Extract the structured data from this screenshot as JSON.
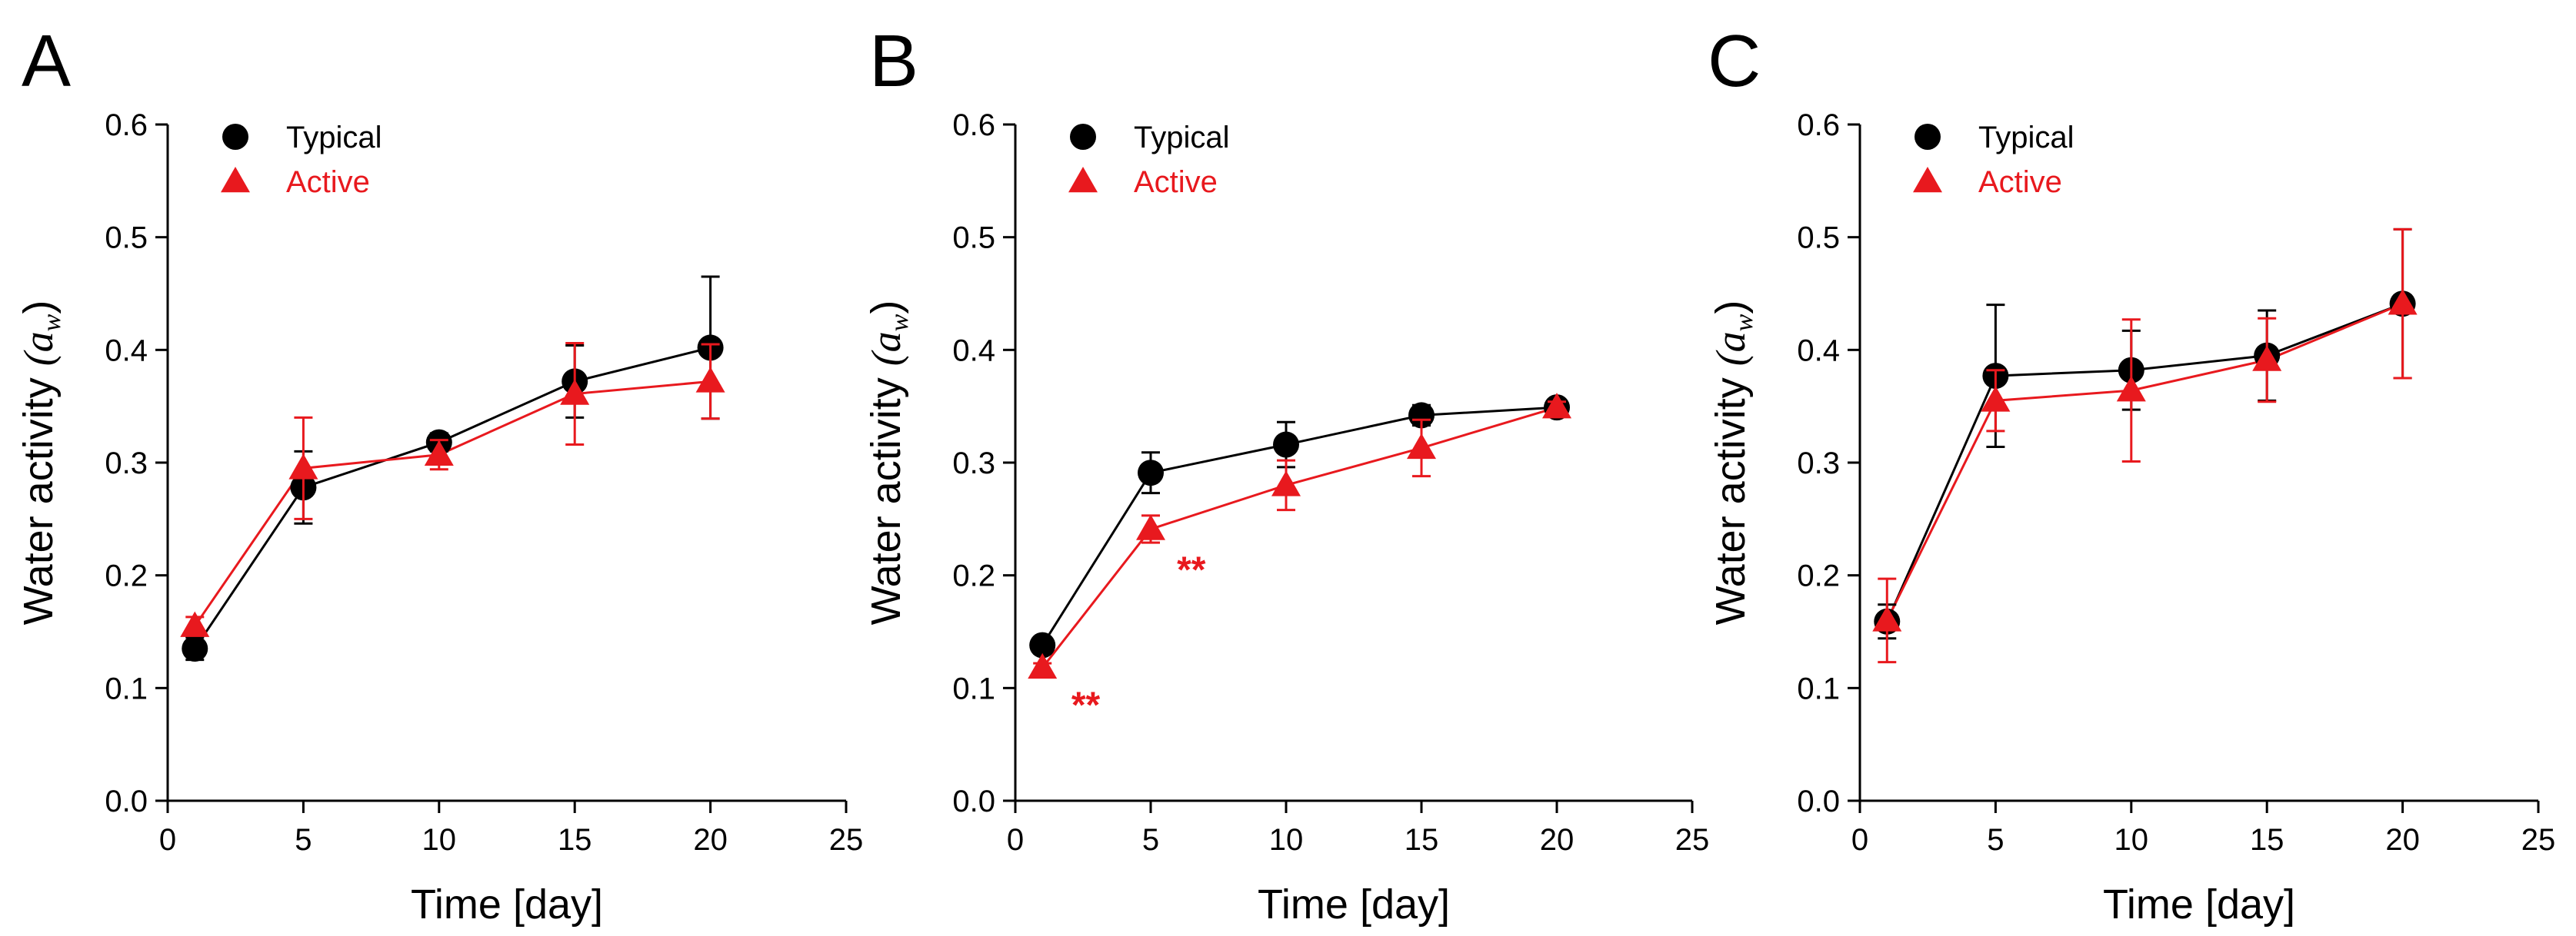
{
  "colors": {
    "typical": "#000000",
    "active": "#e8191e",
    "axis": "#000000"
  },
  "chart_data": [
    {
      "type": "line",
      "panel_label": "A",
      "xlabel": "Time [day]",
      "ylabel": "Water activity",
      "ylabel_symbol": "(a",
      "ylabel_subscript": "w",
      "ylabel_close": ")",
      "xlim": [
        0,
        25
      ],
      "ylim": [
        0.0,
        0.6
      ],
      "xticks": [
        "0",
        "5",
        "10",
        "15",
        "20",
        "25"
      ],
      "yticks": [
        "0.0",
        "0.1",
        "0.2",
        "0.3",
        "0.4",
        "0.5",
        "0.6"
      ],
      "grid": false,
      "legend": "top-left",
      "x": [
        1,
        5,
        10,
        15,
        20
      ],
      "series": [
        {
          "name": "Typical",
          "marker": "circle",
          "values": [
            0.135,
            0.278,
            0.318,
            0.372,
            0.402
          ],
          "errors": [
            0.01,
            0.032,
            0.008,
            0.032,
            0.063
          ]
        },
        {
          "name": "Active",
          "marker": "triangle",
          "values": [
            0.155,
            0.295,
            0.307,
            0.361,
            0.372
          ],
          "errors": [
            0.008,
            0.045,
            0.013,
            0.045,
            0.033
          ]
        }
      ],
      "annotations": []
    },
    {
      "type": "line",
      "panel_label": "B",
      "xlabel": "Time [day]",
      "ylabel": "Water activity",
      "ylabel_symbol": "(a",
      "ylabel_subscript": "w",
      "ylabel_close": ")",
      "xlim": [
        0,
        25
      ],
      "ylim": [
        0.0,
        0.6
      ],
      "xticks": [
        "0",
        "5",
        "10",
        "15",
        "20",
        "25"
      ],
      "yticks": [
        "0.0",
        "0.1",
        "0.2",
        "0.3",
        "0.4",
        "0.5",
        "0.6"
      ],
      "grid": false,
      "legend": "top-left",
      "x": [
        1,
        5,
        10,
        15,
        20
      ],
      "series": [
        {
          "name": "Typical",
          "marker": "circle",
          "values": [
            0.138,
            0.291,
            0.316,
            0.342,
            0.349
          ],
          "errors": [
            0.005,
            0.018,
            0.02,
            0.009,
            0.005
          ]
        },
        {
          "name": "Active",
          "marker": "triangle",
          "values": [
            0.118,
            0.241,
            0.28,
            0.313,
            0.349
          ],
          "errors": [
            0.004,
            0.012,
            0.022,
            0.025,
            0.005
          ]
        }
      ],
      "annotations": [
        {
          "text": "**",
          "x": 2.6,
          "y": 0.085
        },
        {
          "text": "**",
          "x": 6.5,
          "y": 0.205
        }
      ]
    },
    {
      "type": "line",
      "panel_label": "C",
      "xlabel": "Time [day]",
      "ylabel": "Water activity",
      "ylabel_symbol": "(a",
      "ylabel_subscript": "w",
      "ylabel_close": ")",
      "xlim": [
        0,
        25
      ],
      "ylim": [
        0.0,
        0.6
      ],
      "xticks": [
        "0",
        "5",
        "10",
        "15",
        "20",
        "25"
      ],
      "yticks": [
        "0.0",
        "0.1",
        "0.2",
        "0.3",
        "0.4",
        "0.5",
        "0.6"
      ],
      "grid": false,
      "legend": "top-left",
      "x": [
        1,
        5,
        10,
        15,
        20
      ],
      "series": [
        {
          "name": "Typical",
          "marker": "circle",
          "values": [
            0.159,
            0.377,
            0.382,
            0.395,
            0.441
          ],
          "errors": [
            0.015,
            0.063,
            0.035,
            0.04,
            0.066
          ]
        },
        {
          "name": "Active",
          "marker": "triangle",
          "values": [
            0.16,
            0.355,
            0.364,
            0.391,
            0.441
          ],
          "errors": [
            0.037,
            0.027,
            0.063,
            0.037,
            0.066
          ]
        }
      ],
      "annotations": []
    }
  ]
}
